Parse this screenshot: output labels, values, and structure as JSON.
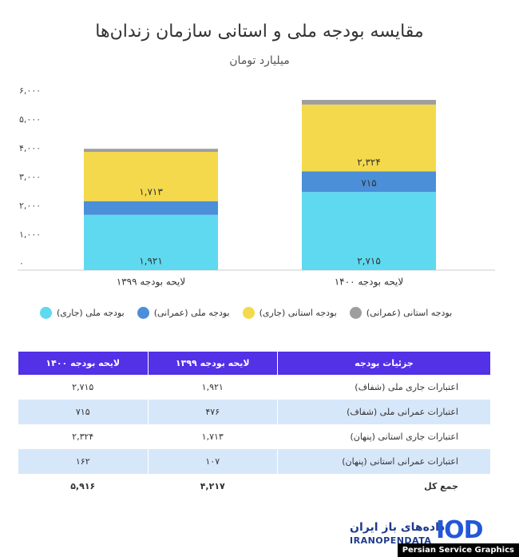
{
  "chart_data": {
    "type": "stacked_bar",
    "title": "مقایسه بودجه ملی و استانی سازمان زندان‌ها",
    "subtitle": "میلیارد تومان",
    "categories": [
      "لایحه بودجه ۱۳۹۹",
      "لایحه بودجه ۱۴۰۰"
    ],
    "series": [
      {
        "name": "بودجه ملی (جاری)",
        "color": "#5fd9ef",
        "values": [
          1921,
          2715
        ],
        "value_labels": [
          "۱,۹۲۱",
          "۲,۷۱۵"
        ]
      },
      {
        "name": "بودجه ملی (عمرانی)",
        "color": "#4a8fd8",
        "values": [
          476,
          715
        ],
        "value_labels": [
          null,
          "۷۱۵"
        ]
      },
      {
        "name": "بودجه استانی (جاری)",
        "color": "#f4d94c",
        "values": [
          1713,
          2324
        ],
        "value_labels": [
          "۱,۷۱۳",
          "۲,۳۲۴"
        ]
      },
      {
        "name": "بودجه استانی (عمرانی)",
        "color": "#9e9e9e",
        "values": [
          107,
          162
        ]
      }
    ],
    "ylim": [
      0,
      6000
    ],
    "yticks": [
      {
        "value": 0,
        "label": "۰"
      },
      {
        "value": 1000,
        "label": "۱,۰۰۰"
      },
      {
        "value": 2000,
        "label": "۲,۰۰۰"
      },
      {
        "value": 3000,
        "label": "۳,۰۰۰"
      },
      {
        "value": 4000,
        "label": "۴,۰۰۰"
      },
      {
        "value": 5000,
        "label": "۵,۰۰۰"
      },
      {
        "value": 6000,
        "label": "۶,۰۰۰"
      }
    ],
    "grid": false
  },
  "table": {
    "header": [
      "جزئیات بودجه",
      "لایحه بودجه ۱۳۹۹",
      "لایحه بودجه ۱۴۰۰"
    ],
    "rows": [
      [
        "اعتبارات جاری ملی (شفاف)",
        "۱,۹۲۱",
        "۲,۷۱۵"
      ],
      [
        "اعتبارات عمرانی ملی (شفاف)",
        "۴۷۶",
        "۷۱۵"
      ],
      [
        "اعتبارات جاری استانی (پنهان)",
        "۱,۷۱۳",
        "۲,۳۲۴"
      ],
      [
        "اعتبارات عمرانی استانی (پنهان)",
        "۱۰۷",
        "۱۶۲"
      ]
    ],
    "total": [
      "جمع کل",
      "۴,۲۱۷",
      "۵,۹۱۶"
    ]
  },
  "footer": {
    "logo_fa": "داده‌های باز ایران",
    "logo_en": "IRANOPENDATA",
    "logo_mark": "IOD",
    "credit": "Persian Service Graphics"
  }
}
